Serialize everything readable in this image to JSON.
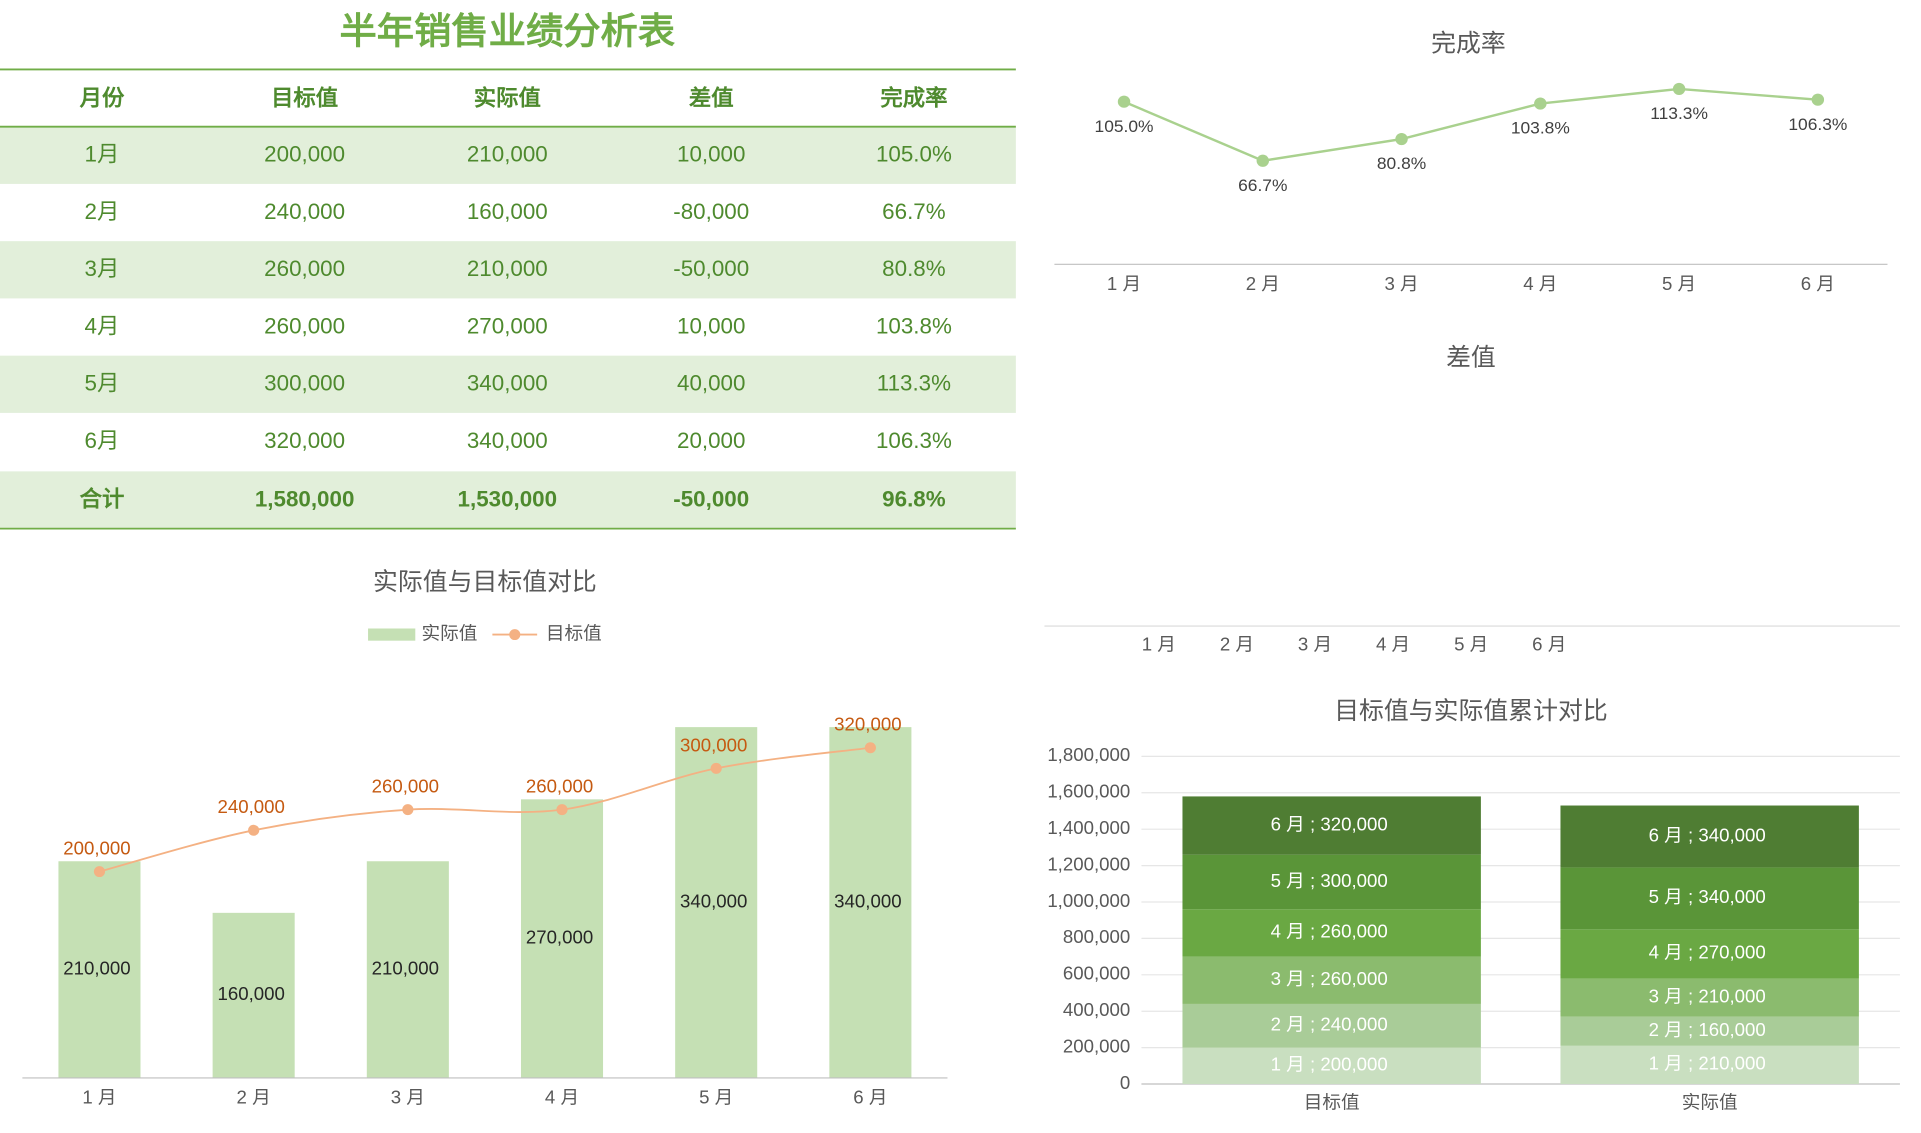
{
  "title": "半年销售业绩分析表",
  "table": {
    "header": [
      "月份",
      "目标值",
      "实际值",
      "差值",
      "完成率"
    ],
    "rows": [
      [
        "1月",
        "200,000",
        "210,000",
        "10,000",
        "105.0%"
      ],
      [
        "2月",
        "240,000",
        "160,000",
        "-80,000",
        "66.7%"
      ],
      [
        "3月",
        "260,000",
        "210,000",
        "-50,000",
        "80.8%"
      ],
      [
        "4月",
        "260,000",
        "270,000",
        "10,000",
        "103.8%"
      ],
      [
        "5月",
        "300,000",
        "340,000",
        "40,000",
        "113.3%"
      ],
      [
        "6月",
        "320,000",
        "340,000",
        "20,000",
        "106.3%"
      ]
    ],
    "total": [
      "合计",
      "1,580,000",
      "1,530,000",
      "-50,000",
      "96.8%"
    ]
  },
  "chart_data": [
    {
      "type": "line",
      "title": "完成率",
      "categories": [
        "1 月",
        "2 月",
        "3 月",
        "4 月",
        "5 月",
        "6 月"
      ],
      "values": [
        105.0,
        66.7,
        80.8,
        103.8,
        113.3,
        106.3
      ],
      "value_labels": [
        "105.0%",
        "66.7%",
        "80.8%",
        "103.8%",
        "113.3%",
        "106.3%"
      ],
      "color": "#a9d18e"
    },
    {
      "type": "bar",
      "title": "差值",
      "categories": [
        "1 月",
        "2 月",
        "3 月",
        "4 月",
        "5 月",
        "6 月"
      ]
    },
    {
      "type": "combo",
      "title": "实际值与目标值对比",
      "categories": [
        "1 月",
        "2 月",
        "3 月",
        "4 月",
        "5 月",
        "6 月"
      ],
      "ylim": [
        0,
        350000
      ],
      "series": [
        {
          "name": "实际值",
          "type": "bar",
          "color": "#c5e0b4",
          "values": [
            210000,
            160000,
            210000,
            270000,
            340000,
            340000
          ],
          "value_labels": [
            "210,000",
            "160,000",
            "210,000",
            "270,000",
            "340,000",
            "340,000"
          ]
        },
        {
          "name": "目标值",
          "type": "line",
          "color": "#f4b183",
          "label_color": "#c55a11",
          "smooth": true,
          "values": [
            200000,
            240000,
            260000,
            260000,
            300000,
            320000
          ],
          "value_labels": [
            "200,000",
            "240,000",
            "260,000",
            "260,000",
            "300,000",
            "320,000"
          ]
        }
      ]
    },
    {
      "type": "stacked_bar",
      "title": "目标值与实际值累计对比",
      "categories": [
        "目标值",
        "实际值"
      ],
      "ylim": [
        0,
        1800000
      ],
      "yticks": [
        0,
        {
          "value": 200000,
          "label": "200,000"
        },
        {
          "value": 400000,
          "label": "400,000"
        },
        {
          "value": 600000,
          "label": "600,000"
        },
        {
          "value": 800000,
          "label": "800,000"
        },
        {
          "value": 1000000,
          "label": "1,000,000"
        },
        {
          "value": 1200000,
          "label": "1,200,000"
        },
        {
          "value": 1400000,
          "label": "1,400,000"
        },
        {
          "value": 1600000,
          "label": "1,600,000"
        },
        {
          "value": 1800000,
          "label": "1,800,000"
        }
      ],
      "grid": true,
      "series": [
        {
          "color": "#c9dfc0",
          "values": [
            200000,
            210000
          ],
          "value_labels": [
            "1 月 ; 200,000",
            "1 月 ; 210,000"
          ]
        },
        {
          "color": "#a9cc98",
          "values": [
            240000,
            160000
          ],
          "value_labels": [
            "2 月 ; 240,000",
            "2 月 ; 160,000"
          ]
        },
        {
          "color": "#8bbb6e",
          "values": [
            260000,
            210000
          ],
          "value_labels": [
            "3 月 ; 260,000",
            "3 月 ; 210,000"
          ]
        },
        {
          "color": "#6aa843",
          "values": [
            260000,
            270000
          ],
          "value_labels": [
            "4 月 ; 260,000",
            "4 月 ; 270,000"
          ]
        },
        {
          "color": "#5a9538",
          "values": [
            300000,
            340000
          ],
          "value_labels": [
            "5 月 ; 300,000",
            "5 月 ; 340,000"
          ]
        },
        {
          "color": "#4f7d33",
          "values": [
            320000,
            340000
          ],
          "value_labels": [
            "6 月 ; 320,000",
            "6 月 ; 340,000"
          ]
        }
      ]
    }
  ]
}
